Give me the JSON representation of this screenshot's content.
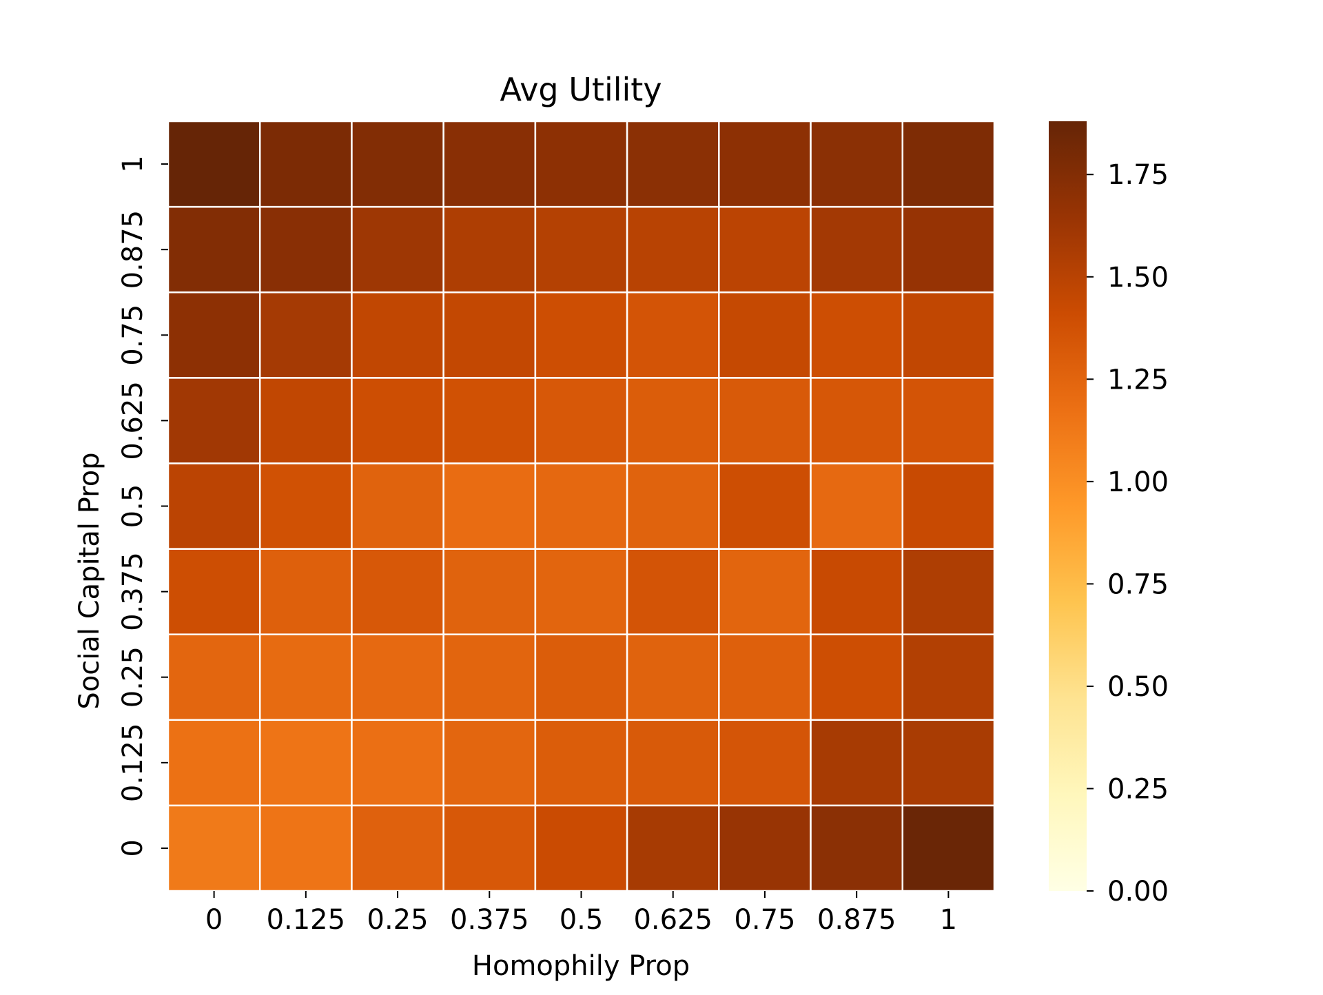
{
  "chart_data": {
    "type": "heatmap",
    "title": "Avg Utility",
    "xlabel": "Homophily Prop",
    "ylabel": "Social Capital Prop",
    "x_categories": [
      "0",
      "0.125",
      "0.25",
      "0.375",
      "0.5",
      "0.625",
      "0.75",
      "0.875",
      "1"
    ],
    "y_categories": [
      "0",
      "0.125",
      "0.25",
      "0.375",
      "0.5",
      "0.625",
      "0.75",
      "0.875",
      "1"
    ],
    "y_order": "bottom-to-top",
    "values": [
      [
        1.12,
        1.15,
        1.27,
        1.33,
        1.42,
        1.58,
        1.65,
        1.71,
        1.86
      ],
      [
        1.17,
        1.15,
        1.18,
        1.24,
        1.3,
        1.32,
        1.35,
        1.58,
        1.57
      ],
      [
        1.24,
        1.21,
        1.22,
        1.25,
        1.3,
        1.26,
        1.28,
        1.4,
        1.53
      ],
      [
        1.4,
        1.28,
        1.33,
        1.26,
        1.25,
        1.36,
        1.25,
        1.43,
        1.55
      ],
      [
        1.49,
        1.38,
        1.26,
        1.2,
        1.23,
        1.26,
        1.4,
        1.22,
        1.43
      ],
      [
        1.61,
        1.46,
        1.4,
        1.38,
        1.33,
        1.3,
        1.32,
        1.34,
        1.36
      ],
      [
        1.7,
        1.59,
        1.46,
        1.45,
        1.4,
        1.36,
        1.44,
        1.4,
        1.46
      ],
      [
        1.75,
        1.72,
        1.62,
        1.55,
        1.52,
        1.5,
        1.49,
        1.6,
        1.66
      ],
      [
        1.88,
        1.78,
        1.75,
        1.72,
        1.7,
        1.71,
        1.7,
        1.71,
        1.77
      ]
    ],
    "colorbar": {
      "min": 0.0,
      "max": 1.88,
      "ticks": [
        0.0,
        0.25,
        0.5,
        0.75,
        1.0,
        1.25,
        1.5,
        1.75
      ],
      "tick_labels": [
        "0.00",
        "0.25",
        "0.50",
        "0.75",
        "1.00",
        "1.25",
        "1.50",
        "1.75"
      ],
      "colormap": "YlOrBr",
      "colormap_stops": [
        "#ffffe5",
        "#fff7bc",
        "#fee391",
        "#fec44f",
        "#fe9929",
        "#ec7014",
        "#cc4c02",
        "#993404",
        "#662506"
      ]
    },
    "grid": false,
    "cell_separator_color": "#ffffff"
  }
}
